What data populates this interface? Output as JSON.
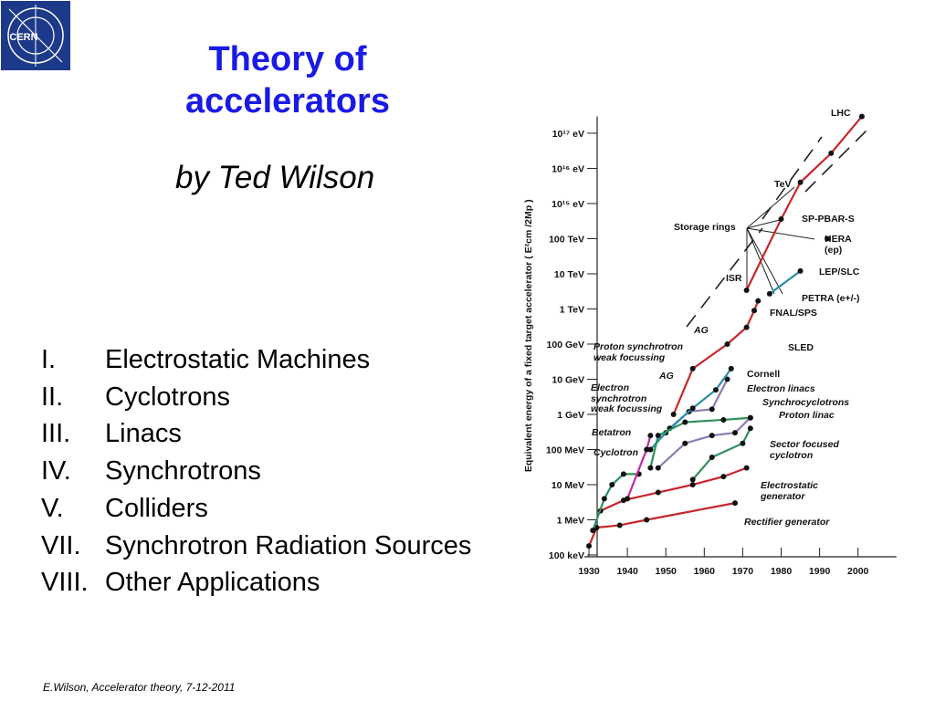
{
  "logo": {
    "text": "CERN"
  },
  "header": {
    "title": "Theory of accelerators",
    "subtitle": "by Ted Wilson"
  },
  "contents": [
    {
      "number": "I.",
      "text": "Electrostatic Machines"
    },
    {
      "number": "II.",
      "text": "Cyclotrons"
    },
    {
      "number": "III.",
      "text": "Linacs"
    },
    {
      "number": "IV.",
      "text": "Synchrotrons"
    },
    {
      "number": "V.",
      "text": "Colliders"
    },
    {
      "number": "VII.",
      "text": "Synchrotron Radiation Sources"
    },
    {
      "number": "VIII.",
      "text": "Other Applications"
    }
  ],
  "footer": "E.Wilson, Accelerator theory, 7-12-2011",
  "chart_data": {
    "type": "line",
    "y_scale": "log",
    "ylabel": "Equivalent energy of a fixed target accelerator ( E²cm /2Mp )",
    "xlim": [
      1927.5,
      2010
    ],
    "xticks": [
      1930,
      1940,
      1950,
      1960,
      1970,
      1980,
      1990,
      2000
    ],
    "ylim": [
      100000.0,
      3e+17
    ],
    "yticks": [
      {
        "value": 100000.0,
        "label": "100 keV"
      },
      {
        "value": 1000000.0,
        "label": "1 MeV"
      },
      {
        "value": 10000000.0,
        "label": "10 MeV"
      },
      {
        "value": 100000000.0,
        "label": "100 MeV"
      },
      {
        "value": 1000000000.0,
        "label": "1 GeV"
      },
      {
        "value": 10000000000.0,
        "label": "10 GeV"
      },
      {
        "value": 100000000000.0,
        "label": "100 GeV"
      },
      {
        "value": 1000000000000.0,
        "label": "1 TeV"
      },
      {
        "value": 10000000000000.0,
        "label": "10 TeV"
      },
      {
        "value": 100000000000000.0,
        "label": "100 TeV"
      },
      {
        "value": 1000000000000000.0,
        "label": "10¹⁵ eV"
      },
      {
        "value": 1e+16,
        "label": "10¹⁶ eV"
      },
      {
        "value": 1e+17,
        "label": "10¹⁷ eV"
      }
    ],
    "series": [
      {
        "name": "Rectifier generator",
        "color": "#c8262b",
        "x": [
          1930,
          1932,
          1938,
          1945,
          1968
        ],
        "values": [
          180000.0,
          600000.0,
          700000.0,
          1000000.0,
          3000000.0
        ]
      },
      {
        "name": "Electrostatic generator",
        "color": "#c8262b",
        "x": [
          1933,
          1939,
          1948,
          1957,
          1965,
          1971
        ],
        "values": [
          1800000.0,
          3600000.0,
          6000000.0,
          10000000.0,
          17000000.0,
          30000000.0
        ]
      },
      {
        "name": "Cyclotron",
        "color": "#2f8f5b",
        "x": [
          1931,
          1934,
          1936,
          1939,
          1943
        ],
        "values": [
          500000.0,
          4000000.0,
          10000000.0,
          20000000.0,
          20000000.0
        ]
      },
      {
        "name": "Betatron",
        "color": "#c02aa0",
        "x": [
          1940,
          1945,
          1946
        ],
        "values": [
          4000000.0,
          100000000.0,
          250000000.0
        ]
      },
      {
        "name": "Electron synchrotron weak focussing",
        "color": "#8a7cb5",
        "x": [
          1946,
          1950,
          1956,
          1962,
          1966
        ],
        "values": [
          100000000.0,
          300000000.0,
          1200000000.0,
          1400000000.0,
          10000000000.0
        ]
      },
      {
        "name": "Proton synchrotron weak focussing",
        "color": "#c8262b",
        "x": [
          1952,
          1957,
          1966,
          1971,
          1973,
          1974
        ],
        "values": [
          1000000000.0,
          20000000000.0,
          100000000000.0,
          300000000000.0,
          900000000000.0,
          1700000000000.0
        ]
      },
      {
        "name": "Electron linacs",
        "color": "#2a8fa8",
        "x": [
          1946,
          1951,
          1957,
          1963,
          1967
        ],
        "values": [
          100000000.0,
          400000000.0,
          1500000000.0,
          5000000000.0,
          20000000000.0
        ]
      },
      {
        "name": "Synchrocyclotrons",
        "color": "#2f8f5b",
        "x": [
          1946,
          1948,
          1955,
          1965,
          1972
        ],
        "values": [
          30000000.0,
          250000000.0,
          600000000.0,
          700000000.0,
          800000000.0
        ]
      },
      {
        "name": "Proton linac",
        "color": "#8a7cb5",
        "x": [
          1948,
          1955,
          1962,
          1968,
          1972
        ],
        "values": [
          30000000.0,
          150000000.0,
          250000000.0,
          300000000.0,
          800000000.0
        ]
      },
      {
        "name": "Sector focused cyclotron",
        "color": "#2f8f5b",
        "x": [
          1957,
          1962,
          1970,
          1972
        ],
        "values": [
          14000000.0,
          60000000.0,
          150000000.0,
          400000000.0
        ]
      },
      {
        "name": "Storage rings",
        "color": "#c8262b",
        "x": [
          1971,
          1980,
          1985,
          1993,
          2001
        ],
        "values": [
          3400000000000.0,
          360000000000000.0,
          4000000000000000.0,
          2.7e+16,
          3e+17
        ]
      },
      {
        "name": "LEP/SLC",
        "color": "#2a8fa8",
        "x": [
          1977,
          1985
        ],
        "values": [
          2700000000000.0,
          12000000000000.0
        ]
      },
      {
        "name": "HERA (ep)",
        "color": "#222222",
        "x": [
          1992
        ],
        "values": [
          100000000000000.0
        ]
      }
    ],
    "annotations": [
      "LHC",
      "TeV",
      "SP-PBAR-S",
      "ISR",
      "PETRA (e+/-)",
      "FNAL/SPS",
      "AG",
      "AG",
      "SLED",
      "Cornell"
    ]
  }
}
